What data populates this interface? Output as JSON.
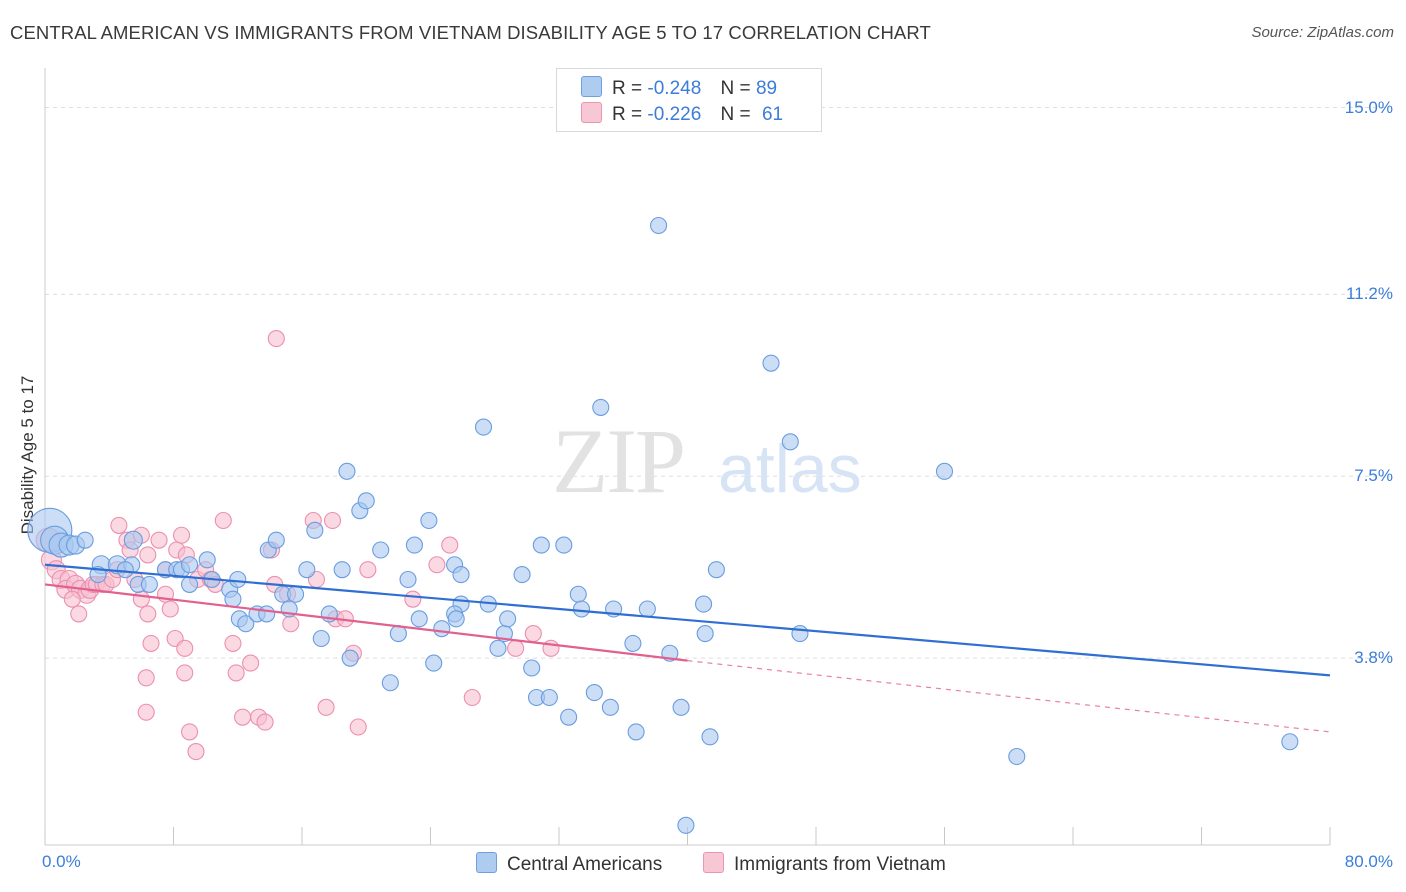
{
  "title": "CENTRAL AMERICAN VS IMMIGRANTS FROM VIETNAM DISABILITY AGE 5 TO 17 CORRELATION CHART",
  "source": "Source: ZipAtlas.com",
  "watermark": {
    "zip": "ZIP",
    "atlas": "atlas"
  },
  "legend": {
    "rows": [
      {
        "r_label": "R =",
        "r_value": "-0.248",
        "n_label": "N =",
        "n_value": "89"
      },
      {
        "r_label": "R =",
        "r_value": "-0.226",
        "n_label": "N =",
        "n_value": "61"
      }
    ]
  },
  "bottom_legend": {
    "series1": "Central Americans",
    "series2": "Immigrants from Vietnam"
  },
  "colors": {
    "blue_fill": "#a9c8f0",
    "blue_stroke": "#6a9de0",
    "blue_line": "#2f6fd1",
    "pink_fill": "#f6bfd0",
    "pink_stroke": "#ec8fb0",
    "pink_line": "#e2608e",
    "tick_text": "#3b7dd8",
    "grid": "#dddddd"
  },
  "chart_data": {
    "type": "scatter",
    "title": "CENTRAL AMERICAN VS IMMIGRANTS FROM VIETNAM DISABILITY AGE 5 TO 17 CORRELATION CHART",
    "xlabel": "",
    "ylabel": "Disability Age 5 to 17",
    "xlim": [
      0,
      80
    ],
    "ylim": [
      0,
      15.6
    ],
    "x_tick_labels": [
      "0.0%",
      "80.0%"
    ],
    "y_ticks": [
      3.8,
      7.5,
      11.2,
      15.0
    ],
    "y_tick_labels": [
      "3.8%",
      "7.5%",
      "11.2%",
      "15.0%"
    ],
    "grid": true,
    "series": [
      {
        "name": "Central Americans",
        "r": -0.248,
        "n": 89,
        "trend": {
          "x0": 0,
          "y0": 5.7,
          "x1": 80,
          "y1": 3.45
        },
        "points": [
          [
            0.3,
            6.4,
            22
          ],
          [
            0.6,
            6.2,
            14
          ],
          [
            1.0,
            6.1,
            12
          ],
          [
            1.5,
            6.1,
            10
          ],
          [
            1.9,
            6.1,
            9
          ],
          [
            2.5,
            6.2,
            8
          ],
          [
            3.5,
            5.7,
            9
          ],
          [
            4.5,
            5.7,
            9
          ],
          [
            5.4,
            5.7,
            8
          ],
          [
            3.3,
            5.5,
            8
          ],
          [
            5.0,
            5.6,
            8
          ],
          [
            5.5,
            6.2,
            9
          ],
          [
            5.8,
            5.3,
            8
          ],
          [
            6.5,
            5.3,
            8
          ],
          [
            7.5,
            5.6,
            8
          ],
          [
            8.2,
            5.6,
            8
          ],
          [
            8.5,
            5.6,
            8
          ],
          [
            9.0,
            5.7,
            8
          ],
          [
            9.0,
            5.3,
            8
          ],
          [
            10.1,
            5.8,
            8
          ],
          [
            10.4,
            5.4,
            8
          ],
          [
            11.5,
            5.2,
            8
          ],
          [
            11.7,
            5.0,
            8
          ],
          [
            12.0,
            5.4,
            8
          ],
          [
            12.1,
            4.6,
            8
          ],
          [
            12.5,
            4.5,
            8
          ],
          [
            13.2,
            4.7,
            8
          ],
          [
            13.8,
            4.7,
            8
          ],
          [
            13.9,
            6.0,
            8
          ],
          [
            14.4,
            6.2,
            8
          ],
          [
            14.8,
            5.1,
            8
          ],
          [
            15.2,
            4.8,
            8
          ],
          [
            15.6,
            5.1,
            8
          ],
          [
            16.3,
            5.6,
            8
          ],
          [
            16.8,
            6.4,
            8
          ],
          [
            17.2,
            4.2,
            8
          ],
          [
            17.7,
            4.7,
            8
          ],
          [
            18.5,
            5.6,
            8
          ],
          [
            18.8,
            7.6,
            8
          ],
          [
            19.0,
            3.8,
            8
          ],
          [
            19.6,
            6.8,
            8
          ],
          [
            20.0,
            7.0,
            8
          ],
          [
            20.9,
            6.0,
            8
          ],
          [
            21.5,
            3.3,
            8
          ],
          [
            22.0,
            4.3,
            8
          ],
          [
            22.6,
            5.4,
            8
          ],
          [
            23.0,
            6.1,
            8
          ],
          [
            23.3,
            4.6,
            8
          ],
          [
            23.9,
            6.6,
            8
          ],
          [
            24.2,
            3.7,
            8
          ],
          [
            24.7,
            4.4,
            8
          ],
          [
            25.5,
            5.7,
            8
          ],
          [
            25.9,
            5.5,
            8
          ],
          [
            25.9,
            4.9,
            8
          ],
          [
            25.5,
            4.7,
            8
          ],
          [
            25.6,
            4.6,
            8
          ],
          [
            27.3,
            8.5,
            8
          ],
          [
            27.6,
            4.9,
            8
          ],
          [
            28.2,
            4.0,
            8
          ],
          [
            28.6,
            4.3,
            8
          ],
          [
            28.8,
            4.6,
            8
          ],
          [
            29.7,
            5.5,
            8
          ],
          [
            30.3,
            3.6,
            8
          ],
          [
            30.6,
            3.0,
            8
          ],
          [
            30.9,
            6.1,
            8
          ],
          [
            31.4,
            3.0,
            8
          ],
          [
            32.3,
            6.1,
            8
          ],
          [
            32.6,
            2.6,
            8
          ],
          [
            33.2,
            5.1,
            8
          ],
          [
            33.4,
            4.8,
            8
          ],
          [
            34.2,
            3.1,
            8
          ],
          [
            34.6,
            8.9,
            8
          ],
          [
            35.2,
            2.8,
            8
          ],
          [
            35.4,
            4.8,
            8
          ],
          [
            36.6,
            4.1,
            8
          ],
          [
            36.8,
            2.3,
            8
          ],
          [
            37.5,
            4.8,
            8
          ],
          [
            38.2,
            12.6,
            8
          ],
          [
            38.9,
            3.9,
            8
          ],
          [
            39.6,
            2.8,
            8
          ],
          [
            39.9,
            0.4,
            8
          ],
          [
            41.0,
            4.9,
            8
          ],
          [
            41.1,
            4.3,
            8
          ],
          [
            41.4,
            2.2,
            8
          ],
          [
            41.8,
            5.6,
            8
          ],
          [
            45.2,
            9.8,
            8
          ],
          [
            46.4,
            8.2,
            8
          ],
          [
            47.0,
            4.3,
            8
          ],
          [
            56.0,
            7.6,
            8
          ],
          [
            60.5,
            1.8,
            8
          ],
          [
            77.5,
            2.1,
            8
          ]
        ]
      },
      {
        "name": "Immigrants from Vietnam",
        "r": -0.226,
        "n": 61,
        "trend": {
          "x0": 0,
          "y0": 5.3,
          "x1": 40,
          "y1": 3.75
        },
        "trend_extension": {
          "x0": 40,
          "y0": 3.75,
          "x1": 80,
          "y1": 2.3
        },
        "points": [
          [
            0.2,
            6.2,
            12
          ],
          [
            0.4,
            5.8,
            10
          ],
          [
            0.7,
            5.6,
            9
          ],
          [
            1.0,
            5.4,
            9
          ],
          [
            1.5,
            5.4,
            9
          ],
          [
            1.3,
            5.2,
            9
          ],
          [
            1.9,
            5.3,
            9
          ],
          [
            2.2,
            5.2,
            9
          ],
          [
            2.6,
            5.1,
            9
          ],
          [
            2.8,
            5.2,
            9
          ],
          [
            2.1,
            4.7,
            8
          ],
          [
            1.7,
            5.0,
            8
          ],
          [
            3.0,
            5.3,
            8
          ],
          [
            3.2,
            5.3,
            8
          ],
          [
            3.6,
            5.3,
            8
          ],
          [
            3.8,
            5.3,
            8
          ],
          [
            4.2,
            5.4,
            8
          ],
          [
            4.5,
            5.6,
            8
          ],
          [
            4.6,
            6.5,
            8
          ],
          [
            5.1,
            6.2,
            8
          ],
          [
            5.3,
            6.0,
            8
          ],
          [
            5.6,
            5.4,
            8
          ],
          [
            6.0,
            6.3,
            8
          ],
          [
            6.4,
            5.9,
            8
          ],
          [
            6.0,
            5.0,
            8
          ],
          [
            6.4,
            4.7,
            8
          ],
          [
            6.6,
            4.1,
            8
          ],
          [
            6.3,
            3.4,
            8
          ],
          [
            6.3,
            2.7,
            8
          ],
          [
            7.1,
            6.2,
            8
          ],
          [
            7.5,
            5.6,
            8
          ],
          [
            7.5,
            5.1,
            8
          ],
          [
            7.8,
            4.8,
            8
          ],
          [
            8.1,
            4.2,
            8
          ],
          [
            8.7,
            4.0,
            8
          ],
          [
            8.2,
            6.0,
            8
          ],
          [
            8.5,
            6.3,
            8
          ],
          [
            8.8,
            5.9,
            8
          ],
          [
            8.7,
            3.5,
            8
          ],
          [
            9.0,
            2.3,
            8
          ],
          [
            9.4,
            1.9,
            8
          ],
          [
            9.5,
            5.4,
            8
          ],
          [
            10.0,
            5.6,
            8
          ],
          [
            10.3,
            5.4,
            8
          ],
          [
            10.6,
            5.3,
            8
          ],
          [
            11.1,
            6.6,
            8
          ],
          [
            11.7,
            4.1,
            8
          ],
          [
            11.9,
            3.5,
            8
          ],
          [
            12.3,
            2.6,
            8
          ],
          [
            12.8,
            3.7,
            8
          ],
          [
            13.3,
            2.6,
            8
          ],
          [
            13.7,
            2.5,
            8
          ],
          [
            14.1,
            6.0,
            8
          ],
          [
            14.3,
            5.3,
            8
          ],
          [
            14.4,
            10.3,
            8
          ],
          [
            15.1,
            5.1,
            8
          ],
          [
            15.3,
            4.5,
            8
          ],
          [
            16.7,
            6.6,
            8
          ],
          [
            16.9,
            5.4,
            8
          ],
          [
            17.5,
            2.8,
            8
          ],
          [
            17.9,
            6.6,
            8
          ],
          [
            18.1,
            4.6,
            8
          ],
          [
            18.7,
            4.6,
            8
          ],
          [
            19.2,
            3.9,
            8
          ],
          [
            19.5,
            2.4,
            8
          ],
          [
            20.1,
            5.6,
            8
          ],
          [
            22.9,
            5.0,
            8
          ],
          [
            24.4,
            5.7,
            8
          ],
          [
            25.2,
            6.1,
            8
          ],
          [
            26.6,
            3.0,
            8
          ],
          [
            29.3,
            4.0,
            8
          ],
          [
            30.4,
            4.3,
            8
          ],
          [
            31.5,
            4.0,
            8
          ]
        ]
      }
    ]
  }
}
